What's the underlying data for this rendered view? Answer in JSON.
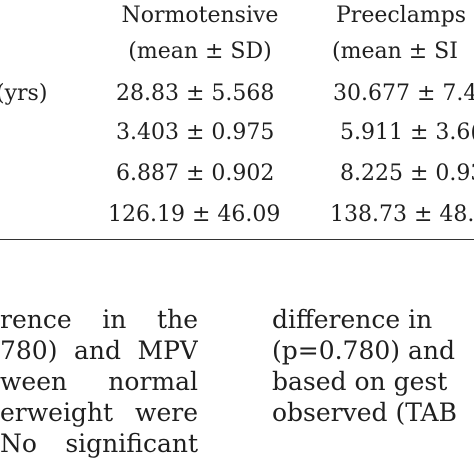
{
  "table": {
    "headers": [
      {
        "name": "Normotensive",
        "sub": "(mean ± SD)"
      },
      {
        "name": "Preeclamps",
        "sub": "(mean ± SI"
      }
    ],
    "rows": [
      {
        "label": "(yrs)",
        "normotensive": "28.83 ± 5.568",
        "preeclampsia": "30.677 ± 7.4"
      },
      {
        "label": "",
        "normotensive": "3.403 ± 0.975",
        "preeclampsia": "5.911 ± 3.6("
      },
      {
        "label": "",
        "normotensive": "6.887 ± 0.902",
        "preeclampsia": "8.225 ± 0.93"
      },
      {
        "label": "",
        "normotensive": "126.19 ± 46.09",
        "preeclampsia": "138.73 ± 48."
      }
    ]
  },
  "text_left": [
    "rence in the",
    "780) and MPV",
    "ween normal",
    "erweight were",
    "No significant"
  ],
  "text_right": [
    "difference in",
    "(p=0.780) and",
    "based on gest",
    "observed (TAB"
  ]
}
